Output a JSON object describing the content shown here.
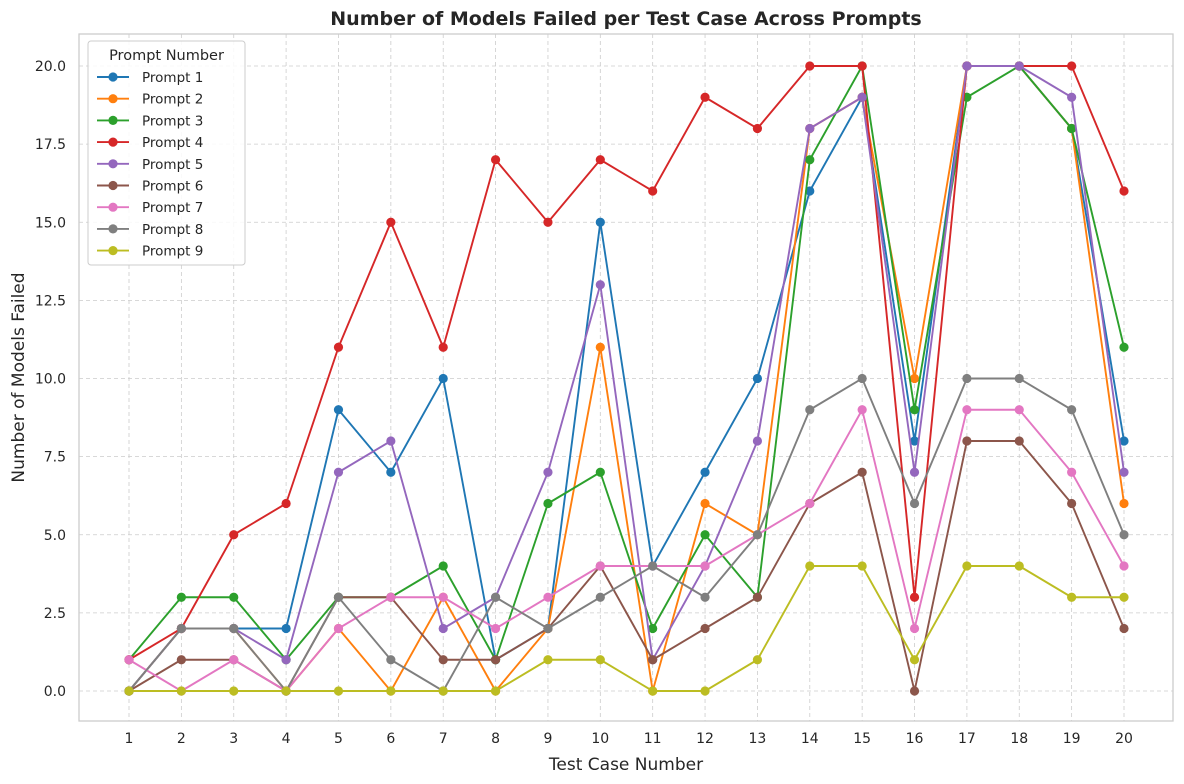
{
  "chart_data": {
    "type": "line",
    "title": "Number of Models Failed per Test Case Across Prompts",
    "xlabel": "Test Case Number",
    "ylabel": "Number of Models Failed",
    "x": [
      1,
      2,
      3,
      4,
      5,
      6,
      7,
      8,
      9,
      10,
      11,
      12,
      13,
      14,
      15,
      16,
      17,
      18,
      19,
      20
    ],
    "ylim": [
      -1,
      21
    ],
    "yticks": [
      "0.0",
      "2.5",
      "5.0",
      "7.5",
      "10.0",
      "12.5",
      "15.0",
      "17.5",
      "20.0"
    ],
    "grid": true,
    "legend_title": "Prompt Number",
    "legend_position": "top-left",
    "series": [
      {
        "name": "Prompt 1",
        "color": "#1f77b4",
        "values": [
          0,
          2,
          2,
          2,
          9,
          7,
          10,
          1,
          2,
          15,
          4,
          7,
          10,
          16,
          19,
          8,
          20,
          20,
          18,
          8
        ]
      },
      {
        "name": "Prompt 2",
        "color": "#ff7f0e",
        "values": [
          0,
          2,
          2,
          0,
          2,
          0,
          3,
          0,
          2,
          11,
          0,
          6,
          5,
          18,
          19,
          10,
          20,
          20,
          18,
          6
        ]
      },
      {
        "name": "Prompt 3",
        "color": "#2ca02c",
        "values": [
          1,
          3,
          3,
          1,
          3,
          3,
          4,
          1,
          6,
          7,
          2,
          5,
          3,
          17,
          20,
          9,
          19,
          20,
          18,
          11
        ]
      },
      {
        "name": "Prompt 4",
        "color": "#d62728",
        "values": [
          1,
          2,
          5,
          6,
          11,
          15,
          11,
          17,
          15,
          17,
          16,
          19,
          18,
          20,
          20,
          3,
          20,
          20,
          20,
          16
        ]
      },
      {
        "name": "Prompt 5",
        "color": "#9467bd",
        "values": [
          0,
          2,
          2,
          1,
          7,
          8,
          2,
          3,
          7,
          13,
          1,
          4,
          8,
          18,
          19,
          7,
          20,
          20,
          19,
          7
        ]
      },
      {
        "name": "Prompt 6",
        "color": "#8c564b",
        "values": [
          0,
          1,
          1,
          0,
          3,
          3,
          1,
          1,
          2,
          4,
          1,
          2,
          3,
          6,
          7,
          0,
          8,
          8,
          6,
          2
        ]
      },
      {
        "name": "Prompt 7",
        "color": "#e377c2",
        "values": [
          1,
          0,
          1,
          0,
          2,
          3,
          3,
          2,
          3,
          4,
          4,
          4,
          5,
          6,
          9,
          2,
          9,
          9,
          7,
          4
        ]
      },
      {
        "name": "Prompt 8",
        "color": "#7f7f7f",
        "values": [
          0,
          2,
          2,
          0,
          3,
          1,
          0,
          3,
          2,
          3,
          4,
          3,
          5,
          9,
          10,
          6,
          10,
          10,
          9,
          5
        ]
      },
      {
        "name": "Prompt 9",
        "color": "#bcbd22",
        "values": [
          0,
          0,
          0,
          0,
          0,
          0,
          0,
          0,
          1,
          1,
          0,
          0,
          1,
          4,
          4,
          1,
          4,
          4,
          3,
          3
        ]
      }
    ]
  }
}
